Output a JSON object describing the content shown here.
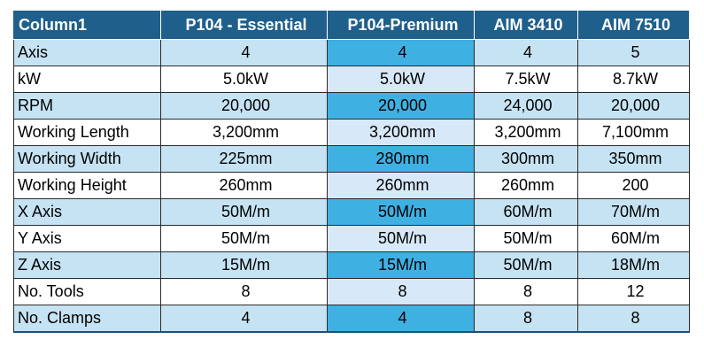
{
  "table": {
    "headers": [
      "Column1",
      "P104 - Essential",
      "P104-Premium",
      "AIM 3410",
      "AIM 7510"
    ],
    "rows": [
      [
        "Axis",
        "4",
        "4",
        "4",
        "5"
      ],
      [
        "kW",
        "5.0kW",
        "5.0kW",
        "7.5kW",
        "8.7kW"
      ],
      [
        "RPM",
        "20,000",
        "20,000",
        "24,000",
        "20,000"
      ],
      [
        "Working Length",
        "3,200mm",
        "3,200mm",
        "3,200mm",
        "7,100mm"
      ],
      [
        "Working Width",
        "225mm",
        "280mm",
        "300mm",
        "350mm"
      ],
      [
        "Working Height",
        "260mm",
        "260mm",
        "260mm",
        "200"
      ],
      [
        "X Axis",
        "50M/m",
        "50M/m",
        "60M/m",
        "70M/m"
      ],
      [
        "Y Axis",
        "50M/m",
        "50M/m",
        "50M/m",
        "60M/m"
      ],
      [
        "Z Axis",
        "15M/m",
        "15M/m",
        "50M/m",
        "18M/m"
      ],
      [
        "No. Tools",
        "8",
        "8",
        "8",
        "12"
      ],
      [
        "No. Clamps",
        "4",
        "4",
        "8",
        "8"
      ]
    ]
  },
  "colors": {
    "header_bg": "#1f5f8b",
    "band_light": "#c6e3f3",
    "highlight_dark": "#3fb0e2",
    "highlight_light": "#d7e8f8"
  }
}
